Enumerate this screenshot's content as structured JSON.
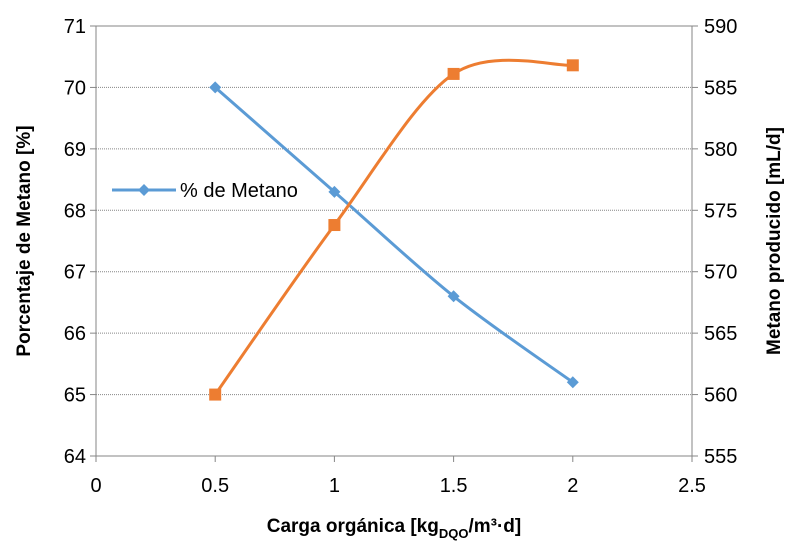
{
  "chart_data": {
    "type": "line",
    "title": "",
    "xlabel": {
      "prefix": "Carga orgánica [kg",
      "subscript": "DQO",
      "suffix": "/m³·d]"
    },
    "ylabel_left": "Porcentaje de Metano [%]",
    "ylabel_right": "Metano producido [mL/d]",
    "xlim": [
      0,
      2.5
    ],
    "ylim_left": [
      64,
      71
    ],
    "ylim_right": [
      555,
      590
    ],
    "x_ticks": [
      "0",
      "0.5",
      "1",
      "1.5",
      "2",
      "2.5"
    ],
    "y_ticks_left": [
      "64",
      "65",
      "66",
      "67",
      "68",
      "69",
      "70",
      "71"
    ],
    "y_ticks_right": [
      "555",
      "560",
      "565",
      "570",
      "575",
      "580",
      "585",
      "590"
    ],
    "grid": "horizontal",
    "legend_position": "left-middle",
    "series": [
      {
        "name": "% de Metano",
        "axis": "left",
        "color": "#5b9bd5",
        "marker": "diamond",
        "smooth": true,
        "x": [
          0.5,
          1,
          1.5,
          2
        ],
        "values": [
          70.0,
          68.3,
          66.6,
          65.2
        ]
      },
      {
        "axis": "right",
        "color": "#ed7d31",
        "marker": "square",
        "smooth": true,
        "x": [
          0.5,
          1,
          1.5,
          2
        ],
        "values": [
          560.0,
          573.8,
          586.1,
          586.8
        ]
      }
    ]
  }
}
